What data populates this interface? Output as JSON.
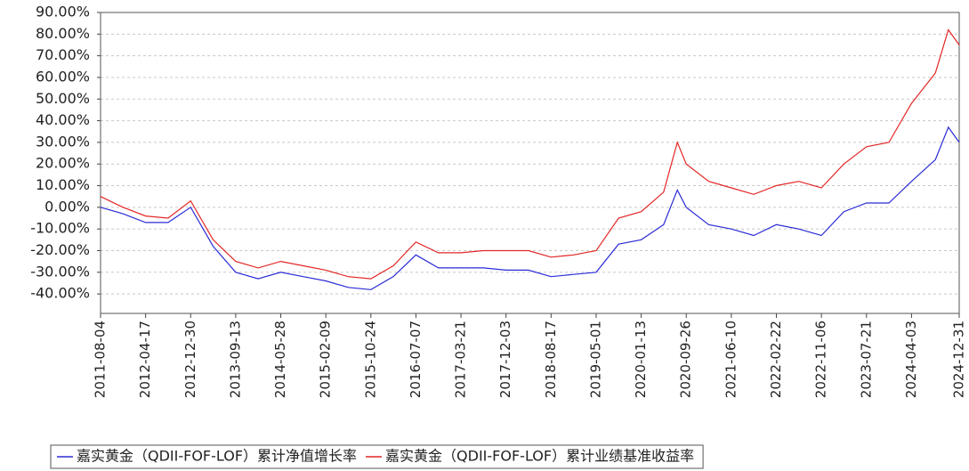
{
  "chart_data": {
    "type": "line",
    "x": [
      "2011-08-04",
      "2011-12-10",
      "2012-04-17",
      "2012-08-23",
      "2012-12-30",
      "2013-05-07",
      "2013-09-13",
      "2014-01-19",
      "2014-05-28",
      "2014-10-03",
      "2015-02-09",
      "2015-06-17",
      "2015-10-24",
      "2016-02-29",
      "2016-07-07",
      "2016-11-12",
      "2017-03-21",
      "2017-07-27",
      "2017-12-03",
      "2018-04-10",
      "2018-08-17",
      "2018-12-23",
      "2019-05-01",
      "2019-09-06",
      "2020-01-13",
      "2020-05-20",
      "2020-08-06",
      "2020-09-26",
      "2021-02-01",
      "2021-06-10",
      "2021-10-16",
      "2022-02-22",
      "2022-06-30",
      "2022-11-06",
      "2023-03-14",
      "2023-07-21",
      "2023-11-26",
      "2024-04-03",
      "2024-08-17",
      "2024-10-30",
      "2024-12-31"
    ],
    "series": [
      {
        "name": "嘉实黄金（QDII-FOF-LOF）累计净值增长率",
        "color": "#2b2bd6",
        "values": [
          0,
          -3,
          -7,
          -7,
          0,
          -18,
          -30,
          -33,
          -30,
          -32,
          -34,
          -37,
          -38,
          -32,
          -22,
          -28,
          -28,
          -28,
          -29,
          -29,
          -32,
          -31,
          -30,
          -17,
          -15,
          -8,
          8,
          0,
          -8,
          -10,
          -13,
          -8,
          -10,
          -13,
          -2,
          2,
          2,
          12,
          22,
          37,
          30
        ]
      },
      {
        "name": "嘉实黄金（QDII-FOF-LOF）累计业绩基准收益率",
        "color": "#e32626",
        "values": [
          5,
          0,
          -4,
          -5,
          3,
          -15,
          -25,
          -28,
          -25,
          -27,
          -29,
          -32,
          -33,
          -27,
          -16,
          -21,
          -21,
          -20,
          -20,
          -20,
          -23,
          -22,
          -20,
          -5,
          -2,
          7,
          30,
          20,
          12,
          9,
          6,
          10,
          12,
          9,
          20,
          28,
          30,
          48,
          62,
          82,
          75
        ]
      }
    ],
    "xlim": [
      "2011-08-04",
      "2024-12-31"
    ],
    "xticks": [
      "2011-08-04",
      "2012-04-17",
      "2012-12-30",
      "2013-09-13",
      "2014-05-28",
      "2015-02-09",
      "2015-10-24",
      "2016-07-07",
      "2017-03-21",
      "2017-12-03",
      "2018-08-17",
      "2019-05-01",
      "2020-01-13",
      "2020-09-26",
      "2021-06-10",
      "2022-02-22",
      "2022-11-06",
      "2023-07-21",
      "2024-04-03",
      "2024-12-31"
    ],
    "ylim": [
      -49,
      90
    ],
    "yticks": [
      {
        "value": 90,
        "label": "90.00%"
      },
      {
        "value": 80,
        "label": "80.00%"
      },
      {
        "value": 70,
        "label": "70.00%"
      },
      {
        "value": 60,
        "label": "60.00%"
      },
      {
        "value": 50,
        "label": "50.00%"
      },
      {
        "value": 40,
        "label": "40.00%"
      },
      {
        "value": 30,
        "label": "30.00%"
      },
      {
        "value": 20,
        "label": "20.00%"
      },
      {
        "value": 10,
        "label": "10.00%"
      },
      {
        "value": 0,
        "label": "0.00%"
      },
      {
        "value": -10,
        "label": "-10.00%"
      },
      {
        "value": -20,
        "label": "-20.00%"
      },
      {
        "value": -30,
        "label": "-30.00%"
      },
      {
        "value": -40,
        "label": "-40.00%"
      }
    ],
    "grid": true
  }
}
